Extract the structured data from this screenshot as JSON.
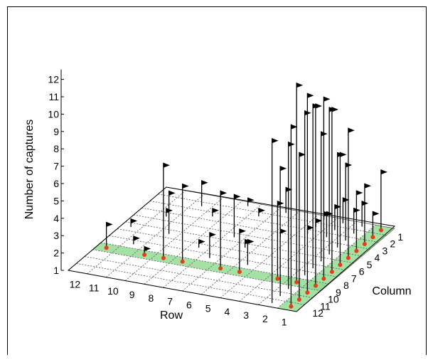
{
  "chart_data": {
    "type": "scatter",
    "subtype": "3d-stem-plot",
    "title": "",
    "xlabel": "Row",
    "ylabel": "Column",
    "zlabel": "Number of captures",
    "row_ticks": [
      "12",
      "11",
      "10",
      "9",
      "8",
      "7",
      "6",
      "5",
      "4",
      "3",
      "2",
      "1"
    ],
    "column_ticks": [
      "1",
      "2",
      "3",
      "4",
      "5",
      "6",
      "7",
      "8",
      "9",
      "10",
      "11",
      "12"
    ],
    "z_ticks": [
      "1",
      "2",
      "3",
      "4",
      "5",
      "6",
      "7",
      "8",
      "9",
      "10",
      "11",
      "12"
    ],
    "zlim": [
      1,
      12
    ],
    "grid": true,
    "highlight_color": "#8fd88f",
    "red_marker_color": "#e0401a",
    "highlighted_row": 1,
    "highlighted_column": 9,
    "points": [
      {
        "row": 1,
        "column": 1,
        "captures": 4
      },
      {
        "row": 1,
        "column": 2,
        "captures": 2
      },
      {
        "row": 1,
        "column": 3,
        "captures": 4
      },
      {
        "row": 1,
        "column": 4,
        "captures": 4
      },
      {
        "row": 1,
        "column": 5,
        "captures": 8
      },
      {
        "row": 1,
        "column": 6,
        "captures": 7
      },
      {
        "row": 1,
        "column": 7,
        "captures": 10
      },
      {
        "row": 1,
        "column": 8,
        "captures": 11
      },
      {
        "row": 1,
        "column": 9,
        "captures": 11
      },
      {
        "row": 1,
        "column": 10,
        "captures": 12
      },
      {
        "row": 1,
        "column": 11,
        "captures": 9
      },
      {
        "row": 1,
        "column": 12,
        "captures": 11
      },
      {
        "row": 2,
        "column": 1,
        "captures": 2
      },
      {
        "row": 2,
        "column": 2,
        "captures": 2
      },
      {
        "row": 2,
        "column": 3,
        "captures": 5
      },
      {
        "row": 2,
        "column": 4,
        "captures": 6
      },
      {
        "row": 2,
        "column": 5,
        "captures": 9
      },
      {
        "row": 2,
        "column": 6,
        "captures": 8
      },
      {
        "row": 2,
        "column": 7,
        "captures": 10
      },
      {
        "row": 2,
        "column": 8,
        "captures": 10
      },
      {
        "row": 2,
        "column": 9,
        "captures": 12
      },
      {
        "row": 2,
        "column": 10,
        "captures": 9
      },
      {
        "row": 2,
        "column": 11,
        "captures": 8
      },
      {
        "row": 2,
        "column": 12,
        "captures": 10
      },
      {
        "row": 3,
        "column": 1,
        "captures": 2
      },
      {
        "row": 3,
        "column": 2,
        "captures": 2
      },
      {
        "row": 3,
        "column": 3,
        "captures": 2
      },
      {
        "row": 3,
        "column": 9,
        "captures": 5
      },
      {
        "row": 4,
        "column": 1,
        "captures": 1
      },
      {
        "row": 4,
        "column": 2,
        "captures": 1
      },
      {
        "row": 4,
        "column": 3,
        "captures": 1
      },
      {
        "row": 5,
        "column": 4,
        "captures": 1
      },
      {
        "row": 5,
        "column": 8,
        "captures": 2
      },
      {
        "row": 5,
        "column": 9,
        "captures": 3
      },
      {
        "row": 6,
        "column": 1,
        "captures": 2
      },
      {
        "row": 6,
        "column": 6,
        "captures": 1
      },
      {
        "row": 6,
        "column": 9,
        "captures": 5
      },
      {
        "row": 7,
        "column": 2,
        "captures": 1
      },
      {
        "row": 7,
        "column": 5,
        "captures": 3
      },
      {
        "row": 7,
        "column": 8,
        "captures": 2
      },
      {
        "row": 8,
        "column": 1,
        "captures": 1
      },
      {
        "row": 8,
        "column": 7,
        "captures": 1
      },
      {
        "row": 8,
        "column": 9,
        "captures": 5
      },
      {
        "row": 9,
        "column": 3,
        "captures": 1
      },
      {
        "row": 9,
        "column": 9,
        "captures": 6
      },
      {
        "row": 10,
        "column": 2,
        "captures": 2
      },
      {
        "row": 10,
        "column": 6,
        "captures": 3
      },
      {
        "row": 10,
        "column": 9,
        "captures": 1
      },
      {
        "row": 11,
        "column": 4,
        "captures": 1
      },
      {
        "row": 11,
        "column": 8,
        "captures": 1
      },
      {
        "row": 12,
        "column": 6,
        "captures": 1
      },
      {
        "row": 12,
        "column": 9,
        "captures": 2
      }
    ]
  }
}
